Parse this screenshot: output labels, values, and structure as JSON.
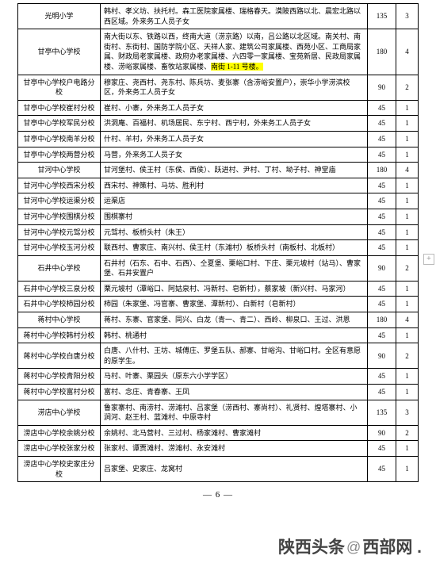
{
  "pageNumber": "— 6 —",
  "watermark": {
    "left": "陕西头条",
    "at": "@",
    "right": "西部网 ."
  },
  "rows": [
    {
      "school": "光明小学",
      "area": "韩村、孝义坊、扶托村。森工医院家属楼、瑞格春天。漠陂西路以北、晨宏北路以西区域。外来务工人员子女",
      "cap": "135",
      "cls": "3"
    },
    {
      "school": "甘亭中心学校",
      "area": "南大街以东、铁路以西，终南大道（涝京路）以南，吕公路以北区域。南关村、南街村、东街村、国防学院小区、天祥人家、建筑公司家属楼、西苑小区、工商局家属、财政局老家属楼、政府办老家属楼、六四零一家属楼、宝苑新居、民政局家属楼、涝峪家属楼、畜牧站家属楼、",
      "areaHL": "南街 1-11 号楼。",
      "cap": "180",
      "cls": "4"
    },
    {
      "school": "甘亭中心学校户电路分校",
      "area": "穆家庄、尧西村、尧东村、陈兵坊、麦张寨（含涝峪安置户），崇华小学涝滨校区，外来务工人员子女",
      "cap": "90",
      "cls": "2"
    },
    {
      "school": "甘亭中心学校崔村分校",
      "area": "崔村、小寨，外来务工人员子女",
      "cap": "45",
      "cls": "1"
    },
    {
      "school": "甘亭中心学校军民分校",
      "area": "洪洞庵、百福村、机场居民、东宁村、西宁村，外来务工人员子女",
      "cap": "45",
      "cls": "1"
    },
    {
      "school": "甘亭中心学校南羊分校",
      "area": "什村、羊村，外来务工人员子女",
      "cap": "45",
      "cls": "1"
    },
    {
      "school": "甘亭中心学校两营分校",
      "area": "马营，外来务工人员子女",
      "cap": "45",
      "cls": "1"
    },
    {
      "school": "甘河中心学校",
      "area": "甘河堡村、侯王村（东侯、西侯）、跃进村、尹村、丁村、坳子村、神堂庙",
      "cap": "180",
      "cls": "4"
    },
    {
      "school": "甘河中心学校西宋分校",
      "area": "西宋村、神策村、马坊、胜利村",
      "cap": "45",
      "cls": "1"
    },
    {
      "school": "甘河中心学校运渠分校",
      "area": "运渠店",
      "cap": "45",
      "cls": "1"
    },
    {
      "school": "甘河中心学校围棋分校",
      "area": "围棋寨村",
      "cap": "45",
      "cls": "1"
    },
    {
      "school": "甘河中心学校元驾分校",
      "area": "元驾村、板桥头村（朱王）",
      "cap": "45",
      "cls": "1"
    },
    {
      "school": "甘河中心学校玉河分校",
      "area": "联西村、曹家庄、南兴村、侯王村（东滩村）板桥头村（南板村、北板村）",
      "cap": "45",
      "cls": "1"
    },
    {
      "school": "石井中心学校",
      "area": "石井村（石东、石中、石西）、仝夏堡、栗峪口村、下庄、栗元坡村（站马）、曹家堡、石井安置户",
      "cap": "90",
      "cls": "2"
    },
    {
      "school": "石井中心学校三泉分校",
      "area": "栗元坡村（潭峪口、阿姑泉村、冯新村、皂新村），蔡家坡（新兴村、马家河）",
      "cap": "45",
      "cls": "1"
    },
    {
      "school": "石井中心学校柿园分校",
      "area": "柿园（朱家堡、冯官寨、曹家堡、潭新村）、白新村（皂新村）",
      "cap": "45",
      "cls": "1"
    },
    {
      "school": "蒋村中心学校",
      "area": "蒋村、东寨、官家堡、同兴、白龙（青一、青二）、西岭、柳泉口、王过、洪恩",
      "cap": "180",
      "cls": "4"
    },
    {
      "school": "蒋村中心学校韩村分校",
      "area": "韩村、桃通村",
      "cap": "45",
      "cls": "1"
    },
    {
      "school": "蒋村中心学校白唐分校",
      "area": "白唐、八什村、王坊、城傅庄、罗堡五队、郝寨、甘峪沟、甘峪口村。全区有意愿的原学生。",
      "cap": "90",
      "cls": "2"
    },
    {
      "school": "蒋村中心学校青阳分校",
      "area": "马村、叶寨、栗园头（原东六小学学区）",
      "cap": "45",
      "cls": "1"
    },
    {
      "school": "蒋村中心学校富村分校",
      "area": "富村、念庄、青春寨、王凤",
      "cap": "45",
      "cls": "1"
    },
    {
      "school": "涝店中心学校",
      "area": "鲁家寨村、南涝村、涝滩村、吕家堡（涝西村、寨尚村）、礼贤村、煌塔寨村、小涧河、赵王村、蓝滩村、中原寺村",
      "cap": "135",
      "cls": "3"
    },
    {
      "school": "涝店中心学校余姚分校",
      "area": "余姚村、北马营村、三过村、杨家滩村、曹家滩村",
      "cap": "90",
      "cls": "2"
    },
    {
      "school": "涝店中心学校张家分校",
      "area": "张家村、谭贾滩村、涝滩村、永安滩村",
      "cap": "45",
      "cls": "1"
    },
    {
      "school": "涝店中心学校史家庄分校",
      "area": "吕家堡、史家庄、龙窝村",
      "cap": "45",
      "cls": "1"
    }
  ]
}
